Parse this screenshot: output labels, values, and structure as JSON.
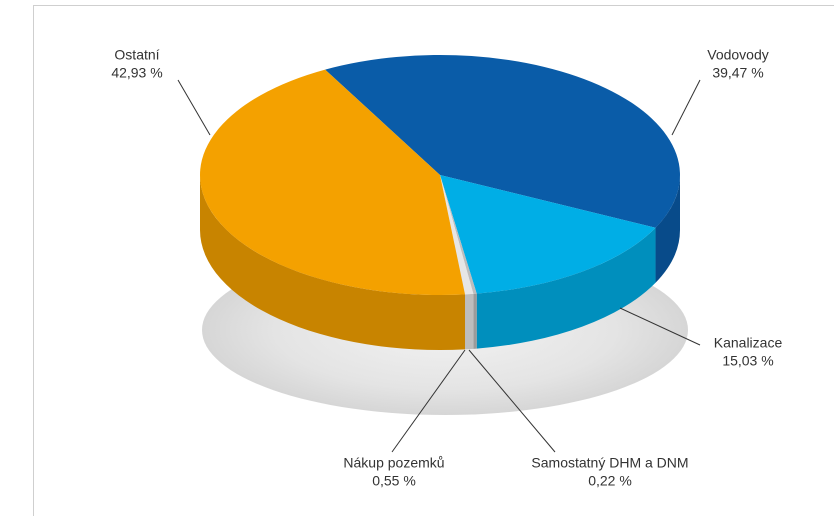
{
  "chart_data": {
    "type": "pie",
    "categories": [
      "Vodovody",
      "Kanalizace",
      "Samostatný DHM a DNM",
      "Nákup pozemků",
      "Ostatní"
    ],
    "values": [
      39.47,
      15.03,
      0.22,
      0.55,
      42.93
    ],
    "value_labels": [
      "39,47 %",
      "15,03 %",
      "0,22 %",
      "0,55 %",
      "42,93 %"
    ],
    "colors": [
      "#0a5ca8",
      "#00aee6",
      "#bdbdbd",
      "#e6e6e6",
      "#f4a100"
    ]
  }
}
